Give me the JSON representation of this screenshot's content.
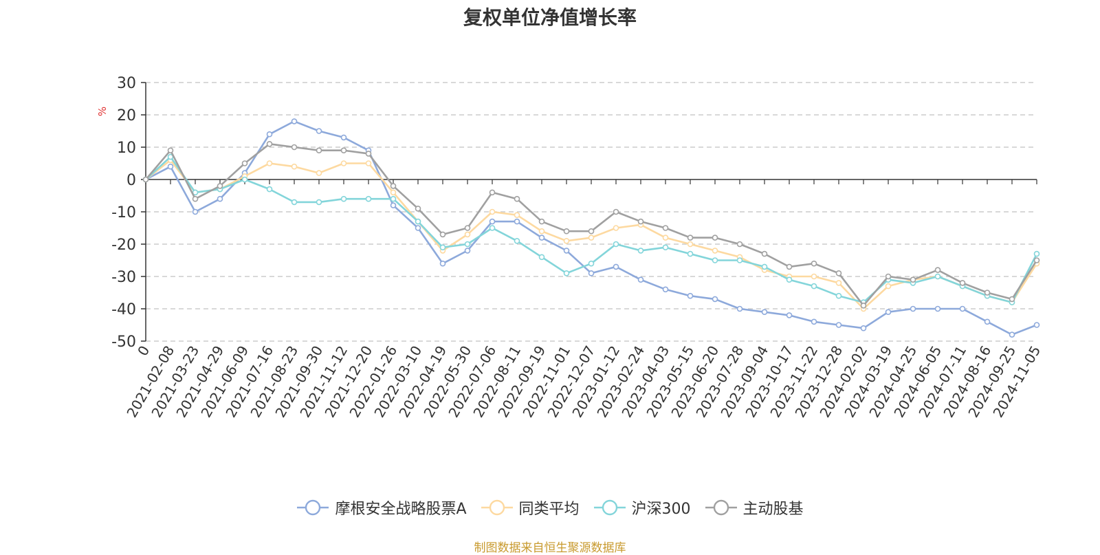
{
  "title": "复权单位净值增长率",
  "source_note": "制图数据来自恒生聚源数据库",
  "colors": {
    "fund": "#8DA9DB",
    "peer": "#FDD9A0",
    "hs300": "#83D5DA",
    "active": "#A0A0A0",
    "axis": "#333333",
    "grid": "#CCCCCC",
    "unit": "#E03030",
    "source": "#C89A2E"
  },
  "chart_data": {
    "type": "line",
    "title": "复权单位净值增长率",
    "ylabel": "%",
    "ylim": [
      -50,
      30
    ],
    "yticks": [
      30,
      20,
      10,
      0,
      -10,
      -20,
      -30,
      -40,
      -50
    ],
    "grid": true,
    "legend_position": "bottom",
    "x_categories": [
      "0",
      "2021-02-08",
      "2021-03-23",
      "2021-04-29",
      "2021-06-09",
      "2021-07-16",
      "2021-08-23",
      "2021-09-30",
      "2021-11-12",
      "2021-12-20",
      "2022-01-26",
      "2022-03-10",
      "2022-04-19",
      "2022-05-30",
      "2022-07-06",
      "2022-08-11",
      "2022-09-19",
      "2022-11-01",
      "2022-12-07",
      "2023-01-12",
      "2023-02-24",
      "2023-04-03",
      "2023-05-15",
      "2023-06-20",
      "2023-07-28",
      "2023-09-04",
      "2023-10-17",
      "2023-11-22",
      "2023-12-28",
      "2024-02-02",
      "2024-03-19",
      "2024-04-25",
      "2024-06-05",
      "2024-07-11",
      "2024-08-16",
      "2024-09-25",
      "2024-11-05"
    ],
    "series": [
      {
        "name": "摩根安全战略股票A",
        "color_key": "fund",
        "values": [
          0,
          4,
          -10,
          -6,
          2,
          14,
          18,
          15,
          13,
          9,
          -8,
          -15,
          -26,
          -22,
          -13,
          -13,
          -18,
          -22,
          -29,
          -27,
          -31,
          -34,
          -36,
          -37,
          -40,
          -41,
          -42,
          -44,
          -45,
          -46,
          -41,
          -40,
          -40,
          -40,
          -44,
          -48,
          -45
        ]
      },
      {
        "name": "同类平均",
        "color_key": "peer",
        "values": [
          0,
          6,
          -4,
          -3,
          1,
          5,
          4,
          2,
          5,
          5,
          -4,
          -13,
          -22,
          -17,
          -10,
          -11,
          -16,
          -19,
          -18,
          -15,
          -14,
          -18,
          -20,
          -22,
          -24,
          -28,
          -30,
          -30,
          -32,
          -40,
          -33,
          -31,
          -30,
          -33,
          -36,
          -38,
          -26
        ]
      },
      {
        "name": "沪深300",
        "color_key": "hs300",
        "values": [
          0,
          7,
          -4,
          -3,
          0,
          -3,
          -7,
          -7,
          -6,
          -6,
          -6,
          -13,
          -21,
          -20,
          -15,
          -19,
          -24,
          -29,
          -26,
          -20,
          -22,
          -21,
          -23,
          -25,
          -25,
          -27,
          -31,
          -33,
          -36,
          -38,
          -31,
          -32,
          -30,
          -33,
          -36,
          -38,
          -23
        ]
      },
      {
        "name": "主动股基",
        "color_key": "active",
        "values": [
          0,
          9,
          -6,
          -2,
          5,
          11,
          10,
          9,
          9,
          8,
          -2,
          -9,
          -17,
          -15,
          -4,
          -6,
          -13,
          -16,
          -16,
          -10,
          -13,
          -15,
          -18,
          -18,
          -20,
          -23,
          -27,
          -26,
          -29,
          -39,
          -30,
          -31,
          -28,
          -32,
          -35,
          -37,
          -25
        ]
      }
    ]
  }
}
